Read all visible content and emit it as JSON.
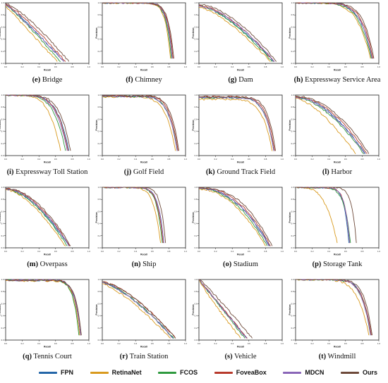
{
  "colors": {
    "FPN": "#2466a8",
    "RetinaNet": "#d99a1e",
    "FCOS": "#2f9a3f",
    "FoveaBox": "#b83a2c",
    "MDCN": "#8a66b8",
    "Ours": "#6e4a3a"
  },
  "axis_text": {
    "xlabel": "Recall",
    "ylabel": "Precision",
    "ticks": [
      "0.0",
      "0.2",
      "0.4",
      "0.6",
      "0.8",
      "1.0"
    ]
  },
  "legend": [
    {
      "name": "FPN",
      "color": "#2466a8"
    },
    {
      "name": "RetinaNet",
      "color": "#d99a1e"
    },
    {
      "name": "FCOS",
      "color": "#2f9a3f"
    },
    {
      "name": "FoveaBox",
      "color": "#b83a2c"
    },
    {
      "name": "MDCN",
      "color": "#8a66b8"
    },
    {
      "name": "Ours",
      "color": "#6e4a3a"
    }
  ],
  "chart_data": [
    {
      "type": "line",
      "letter": "(e)",
      "caption": "Bridge",
      "xlim": [
        0,
        1
      ],
      "ylim": [
        0,
        1
      ],
      "shape": "decay",
      "series": [
        {
          "name": "FPN",
          "r": 0.7,
          "p0": 0.98,
          "k": 1.1,
          "c": 4
        },
        {
          "name": "RetinaNet",
          "r": 0.62,
          "p0": 0.95,
          "k": 1.0,
          "c": 4
        },
        {
          "name": "FCOS",
          "r": 0.66,
          "p0": 0.97,
          "k": 1.1,
          "c": 4
        },
        {
          "name": "FoveaBox",
          "r": 0.72,
          "p0": 0.98,
          "k": 1.2,
          "c": 4
        },
        {
          "name": "MDCN",
          "r": 0.7,
          "p0": 0.97,
          "k": 1.1,
          "c": 4
        },
        {
          "name": "Ours",
          "r": 0.76,
          "p0": 0.99,
          "k": 1.3,
          "c": 4
        }
      ]
    },
    {
      "type": "line",
      "letter": "(f)",
      "caption": "Chimney",
      "xlim": [
        0,
        1
      ],
      "ylim": [
        0,
        1
      ],
      "shape": "flat",
      "series": [
        {
          "name": "FPN",
          "r": 0.84,
          "p0": 1.0,
          "k": 6,
          "c": 4
        },
        {
          "name": "RetinaNet",
          "r": 0.82,
          "p0": 1.0,
          "k": 6,
          "c": 4
        },
        {
          "name": "FCOS",
          "r": 0.83,
          "p0": 1.0,
          "k": 6,
          "c": 4
        },
        {
          "name": "FoveaBox",
          "r": 0.85,
          "p0": 1.0,
          "k": 6,
          "c": 4
        },
        {
          "name": "MDCN",
          "r": 0.84,
          "p0": 1.0,
          "k": 6,
          "c": 4
        },
        {
          "name": "Ours",
          "r": 0.86,
          "p0": 1.0,
          "k": 6,
          "c": 4
        }
      ]
    },
    {
      "type": "line",
      "letter": "(g)",
      "caption": "Dam",
      "xlim": [
        0,
        1
      ],
      "ylim": [
        0,
        1
      ],
      "shape": "decay",
      "series": [
        {
          "name": "FPN",
          "r": 0.9,
          "p0": 0.95,
          "k": 1.5,
          "c": 3
        },
        {
          "name": "RetinaNet",
          "r": 0.86,
          "p0": 0.93,
          "k": 1.4,
          "c": 3
        },
        {
          "name": "FCOS",
          "r": 0.88,
          "p0": 0.95,
          "k": 1.5,
          "c": 3
        },
        {
          "name": "FoveaBox",
          "r": 0.9,
          "p0": 0.96,
          "k": 1.6,
          "c": 3
        },
        {
          "name": "MDCN",
          "r": 0.91,
          "p0": 0.95,
          "k": 1.6,
          "c": 3
        },
        {
          "name": "Ours",
          "r": 0.93,
          "p0": 0.97,
          "k": 1.7,
          "c": 3
        }
      ]
    },
    {
      "type": "line",
      "letter": "(h)",
      "caption": "Expressway Service Area",
      "xlim": [
        0,
        1
      ],
      "ylim": [
        0,
        1
      ],
      "shape": "flat",
      "series": [
        {
          "name": "FPN",
          "r": 0.92,
          "p0": 1.0,
          "k": 3,
          "c": 4
        },
        {
          "name": "RetinaNet",
          "r": 0.9,
          "p0": 1.0,
          "k": 2.6,
          "c": 4
        },
        {
          "name": "FCOS",
          "r": 0.91,
          "p0": 1.0,
          "k": 2.8,
          "c": 4
        },
        {
          "name": "FoveaBox",
          "r": 0.93,
          "p0": 1.0,
          "k": 3.2,
          "c": 4
        },
        {
          "name": "MDCN",
          "r": 0.92,
          "p0": 1.0,
          "k": 3,
          "c": 4
        },
        {
          "name": "Ours",
          "r": 0.94,
          "p0": 1.0,
          "k": 3.5,
          "c": 4
        }
      ]
    },
    {
      "type": "line",
      "letter": "(i)",
      "caption": "Expressway Toll Station",
      "xlim": [
        0,
        1
      ],
      "ylim": [
        0,
        1
      ],
      "shape": "flat",
      "series": [
        {
          "name": "FPN",
          "r": 0.76,
          "p0": 1.0,
          "k": 2.5,
          "c": 4
        },
        {
          "name": "RetinaNet",
          "r": 0.66,
          "p0": 1.0,
          "k": 2.2,
          "c": 4
        },
        {
          "name": "FCOS",
          "r": 0.72,
          "p0": 1.0,
          "k": 2.4,
          "c": 4
        },
        {
          "name": "FoveaBox",
          "r": 0.75,
          "p0": 1.0,
          "k": 2.6,
          "c": 4
        },
        {
          "name": "MDCN",
          "r": 0.74,
          "p0": 1.0,
          "k": 2.5,
          "c": 4
        },
        {
          "name": "Ours",
          "r": 0.78,
          "p0": 1.0,
          "k": 2.8,
          "c": 4
        }
      ]
    },
    {
      "type": "line",
      "letter": "(j)",
      "caption": "Golf Field",
      "xlim": [
        0,
        1
      ],
      "ylim": [
        0,
        1
      ],
      "shape": "flat",
      "series": [
        {
          "name": "FPN",
          "r": 0.9,
          "p0": 0.98,
          "k": 4,
          "c": 4
        },
        {
          "name": "RetinaNet",
          "r": 0.88,
          "p0": 0.97,
          "k": 3.5,
          "c": 4
        },
        {
          "name": "FCOS",
          "r": 0.9,
          "p0": 0.98,
          "k": 4,
          "c": 4
        },
        {
          "name": "FoveaBox",
          "r": 0.91,
          "p0": 0.99,
          "k": 4.2,
          "c": 4
        },
        {
          "name": "MDCN",
          "r": 0.9,
          "p0": 0.98,
          "k": 4,
          "c": 4
        },
        {
          "name": "Ours",
          "r": 0.92,
          "p0": 0.99,
          "k": 4.5,
          "c": 4
        }
      ]
    },
    {
      "type": "line",
      "letter": "(k)",
      "caption": "Ground Track Field",
      "xlim": [
        0,
        1
      ],
      "ylim": [
        0,
        1
      ],
      "shape": "flat",
      "series": [
        {
          "name": "FPN",
          "r": 0.9,
          "p0": 0.96,
          "k": 4,
          "c": 4
        },
        {
          "name": "RetinaNet",
          "r": 0.88,
          "p0": 0.93,
          "k": 3.5,
          "c": 4
        },
        {
          "name": "FCOS",
          "r": 0.9,
          "p0": 0.96,
          "k": 4,
          "c": 4
        },
        {
          "name": "FoveaBox",
          "r": 0.91,
          "p0": 0.97,
          "k": 4.2,
          "c": 4
        },
        {
          "name": "MDCN",
          "r": 0.9,
          "p0": 0.96,
          "k": 4,
          "c": 4
        },
        {
          "name": "Ours",
          "r": 0.92,
          "p0": 0.97,
          "k": 4.5,
          "c": 4
        }
      ]
    },
    {
      "type": "line",
      "letter": "(l)",
      "caption": "Harbor",
      "xlim": [
        0,
        1
      ],
      "ylim": [
        0,
        1
      ],
      "shape": "decay",
      "series": [
        {
          "name": "FPN",
          "r": 0.84,
          "p0": 0.97,
          "k": 1.8,
          "c": 3
        },
        {
          "name": "RetinaNet",
          "r": 0.72,
          "p0": 0.95,
          "k": 1.5,
          "c": 3
        },
        {
          "name": "FCOS",
          "r": 0.82,
          "p0": 0.96,
          "k": 1.7,
          "c": 3
        },
        {
          "name": "FoveaBox",
          "r": 0.86,
          "p0": 0.97,
          "k": 1.9,
          "c": 3
        },
        {
          "name": "MDCN",
          "r": 0.83,
          "p0": 0.96,
          "k": 1.8,
          "c": 3
        },
        {
          "name": "Ours",
          "r": 0.88,
          "p0": 0.98,
          "k": 2.0,
          "c": 3
        }
      ]
    },
    {
      "type": "line",
      "letter": "(m)",
      "caption": "Overpass",
      "xlim": [
        0,
        1
      ],
      "ylim": [
        0,
        1
      ],
      "shape": "decay",
      "series": [
        {
          "name": "FPN",
          "r": 0.76,
          "p0": 0.97,
          "k": 1.7,
          "c": 3
        },
        {
          "name": "RetinaNet",
          "r": 0.72,
          "p0": 0.96,
          "k": 1.6,
          "c": 3
        },
        {
          "name": "FCOS",
          "r": 0.74,
          "p0": 0.97,
          "k": 1.7,
          "c": 3
        },
        {
          "name": "FoveaBox",
          "r": 0.77,
          "p0": 0.98,
          "k": 1.8,
          "c": 3
        },
        {
          "name": "MDCN",
          "r": 0.76,
          "p0": 0.97,
          "k": 1.8,
          "c": 3
        },
        {
          "name": "Ours",
          "r": 0.78,
          "p0": 0.98,
          "k": 1.9,
          "c": 3
        }
      ]
    },
    {
      "type": "line",
      "letter": "(n)",
      "caption": "Ship",
      "xlim": [
        0,
        1
      ],
      "ylim": [
        0,
        1
      ],
      "shape": "flat",
      "series": [
        {
          "name": "FPN",
          "r": 0.74,
          "p0": 1.0,
          "k": 5,
          "c": 5
        },
        {
          "name": "RetinaNet",
          "r": 0.7,
          "p0": 1.0,
          "k": 4,
          "c": 5
        },
        {
          "name": "FCOS",
          "r": 0.72,
          "p0": 1.0,
          "k": 5,
          "c": 5
        },
        {
          "name": "FoveaBox",
          "r": 0.73,
          "p0": 1.0,
          "k": 5,
          "c": 5
        },
        {
          "name": "MDCN",
          "r": 0.74,
          "p0": 1.0,
          "k": 5,
          "c": 5
        },
        {
          "name": "Ours",
          "r": 0.76,
          "p0": 1.0,
          "k": 6,
          "c": 5
        }
      ]
    },
    {
      "type": "line",
      "letter": "(o)",
      "caption": "Stadium",
      "xlim": [
        0,
        1
      ],
      "ylim": [
        0,
        1
      ],
      "shape": "decay",
      "series": [
        {
          "name": "FPN",
          "r": 0.85,
          "p0": 0.98,
          "k": 2.2,
          "c": 3
        },
        {
          "name": "RetinaNet",
          "r": 0.8,
          "p0": 0.97,
          "k": 2.0,
          "c": 3
        },
        {
          "name": "FCOS",
          "r": 0.82,
          "p0": 0.98,
          "k": 2.1,
          "c": 3
        },
        {
          "name": "FoveaBox",
          "r": 0.86,
          "p0": 0.99,
          "k": 2.3,
          "c": 3
        },
        {
          "name": "MDCN",
          "r": 0.84,
          "p0": 0.98,
          "k": 2.2,
          "c": 3
        },
        {
          "name": "Ours",
          "r": 0.88,
          "p0": 0.99,
          "k": 2.5,
          "c": 3
        }
      ]
    },
    {
      "type": "line",
      "letter": "(p)",
      "caption": "Storage Tank",
      "xlim": [
        0,
        1
      ],
      "ylim": [
        0,
        1
      ],
      "shape": "flat",
      "series": [
        {
          "name": "FPN",
          "r": 0.64,
          "p0": 1.0,
          "k": 5,
          "c": 4
        },
        {
          "name": "RetinaNet",
          "r": 0.5,
          "p0": 1.0,
          "k": 1.6,
          "c": 2
        },
        {
          "name": "FCOS",
          "r": 0.66,
          "p0": 1.0,
          "k": 4,
          "c": 4
        },
        {
          "name": "FoveaBox",
          "r": 0.65,
          "p0": 1.0,
          "k": 5,
          "c": 4
        },
        {
          "name": "MDCN",
          "r": 0.65,
          "p0": 1.0,
          "k": 5,
          "c": 4
        },
        {
          "name": "Ours",
          "r": 0.73,
          "p0": 1.0,
          "k": 6,
          "c": 5
        }
      ]
    },
    {
      "type": "line",
      "letter": "(q)",
      "caption": "Tennis Court",
      "xlim": [
        0,
        1
      ],
      "ylim": [
        0,
        1
      ],
      "shape": "flat",
      "series": [
        {
          "name": "FPN",
          "r": 0.9,
          "p0": 0.99,
          "k": 6,
          "c": 5
        },
        {
          "name": "RetinaNet",
          "r": 0.89,
          "p0": 0.98,
          "k": 6,
          "c": 5
        },
        {
          "name": "FCOS",
          "r": 0.88,
          "p0": 0.99,
          "k": 6,
          "c": 5
        },
        {
          "name": "FoveaBox",
          "r": 0.9,
          "p0": 0.99,
          "k": 6,
          "c": 5
        },
        {
          "name": "MDCN",
          "r": 0.9,
          "p0": 0.99,
          "k": 6,
          "c": 5
        },
        {
          "name": "Ours",
          "r": 0.91,
          "p0": 0.99,
          "k": 6,
          "c": 5
        }
      ]
    },
    {
      "type": "line",
      "letter": "(r)",
      "caption": "Train Station",
      "xlim": [
        0,
        1
      ],
      "ylim": [
        0,
        1
      ],
      "shape": "decay",
      "series": [
        {
          "name": "FPN",
          "r": 0.86,
          "p0": 0.95,
          "k": 1.4,
          "c": 3
        },
        {
          "name": "RetinaNet",
          "r": 0.82,
          "p0": 0.93,
          "k": 1.3,
          "c": 3
        },
        {
          "name": "FCOS",
          "r": 0.86,
          "p0": 0.95,
          "k": 1.4,
          "c": 3
        },
        {
          "name": "FoveaBox",
          "r": 0.88,
          "p0": 0.96,
          "k": 1.5,
          "c": 3
        },
        {
          "name": "MDCN",
          "r": 0.85,
          "p0": 0.95,
          "k": 1.4,
          "c": 3
        },
        {
          "name": "Ours",
          "r": 0.88,
          "p0": 0.96,
          "k": 1.5,
          "c": 3
        }
      ]
    },
    {
      "type": "line",
      "letter": "(s)",
      "caption": "Vehicle",
      "xlim": [
        0,
        1
      ],
      "ylim": [
        0,
        1
      ],
      "shape": "decay",
      "series": [
        {
          "name": "FPN",
          "r": 0.58,
          "p0": 1.0,
          "k": 1.0,
          "c": 4
        },
        {
          "name": "RetinaNet",
          "r": 0.5,
          "p0": 1.0,
          "k": 0.9,
          "c": 4
        },
        {
          "name": "FCOS",
          "r": 0.55,
          "p0": 1.0,
          "k": 1.0,
          "c": 4
        },
        {
          "name": "FoveaBox",
          "r": 0.58,
          "p0": 1.0,
          "k": 1.0,
          "c": 4
        },
        {
          "name": "MDCN",
          "r": 0.57,
          "p0": 1.0,
          "k": 1.0,
          "c": 4
        },
        {
          "name": "Ours",
          "r": 0.64,
          "p0": 1.0,
          "k": 1.1,
          "c": 4
        }
      ]
    },
    {
      "type": "line",
      "letter": "(t)",
      "caption": "Windmill",
      "xlim": [
        0,
        1
      ],
      "ylim": [
        0,
        1
      ],
      "shape": "flat",
      "series": [
        {
          "name": "FPN",
          "r": 0.91,
          "p0": 1.0,
          "k": 4,
          "c": 4
        },
        {
          "name": "RetinaNet",
          "r": 0.88,
          "p0": 1.0,
          "k": 3,
          "c": 4
        },
        {
          "name": "FCOS",
          "r": 0.9,
          "p0": 1.0,
          "k": 4,
          "c": 4
        },
        {
          "name": "FoveaBox",
          "r": 0.91,
          "p0": 1.0,
          "k": 4,
          "c": 4
        },
        {
          "name": "MDCN",
          "r": 0.9,
          "p0": 1.0,
          "k": 4,
          "c": 4
        },
        {
          "name": "Ours",
          "r": 0.92,
          "p0": 1.0,
          "k": 4.5,
          "c": 4
        }
      ]
    }
  ]
}
